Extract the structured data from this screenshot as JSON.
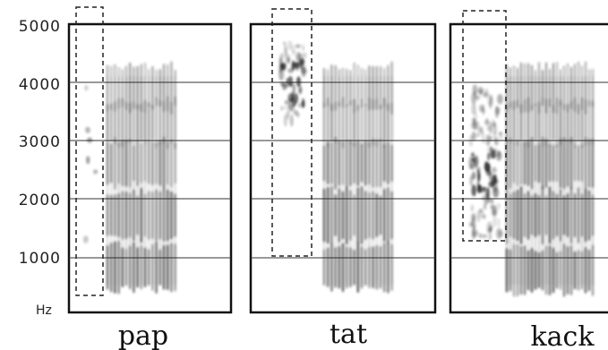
{
  "y_axis": {
    "unit": "Hz",
    "ticks": [
      "5000",
      "4000",
      "3000",
      "2000",
      "1000"
    ],
    "range": [
      0,
      5000
    ]
  },
  "spectrograms": [
    {
      "word": "pap",
      "burst": {
        "from_hz": 300,
        "to_hz": 5250,
        "peak_hz": 2700
      },
      "vowel_bands_hz": [
        800,
        1700,
        2600,
        3300,
        3900
      ]
    },
    {
      "word": "tat",
      "burst": {
        "from_hz": 1000,
        "to_hz": 5000,
        "peak_hz": 4000
      },
      "vowel_bands_hz": [
        800,
        1700,
        2600,
        3300,
        3900
      ]
    },
    {
      "word": "kack",
      "burst": {
        "from_hz": 1250,
        "to_hz": 5000,
        "peak_hz": 2400
      },
      "vowel_bands_hz": [
        750,
        1700,
        2600,
        3300,
        3900
      ]
    }
  ],
  "colors": {
    "ink": "#222222",
    "frame": "#111111",
    "paper": "#ffffff"
  }
}
